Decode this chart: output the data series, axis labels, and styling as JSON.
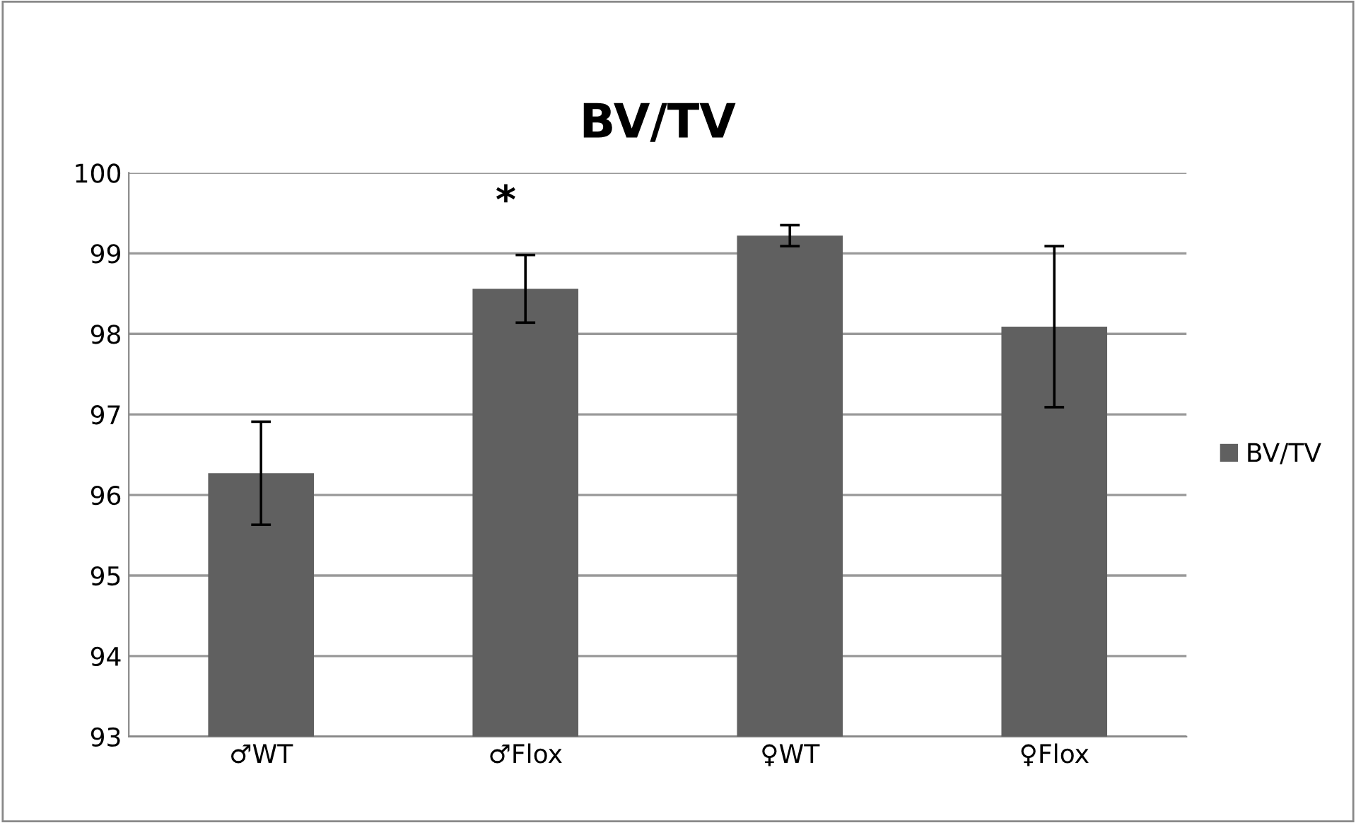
{
  "chart_data": {
    "type": "bar",
    "title": "BV/TV",
    "categories": [
      "♂WT",
      "♂Flox",
      "♀WT",
      "♀Flox"
    ],
    "series": [
      {
        "name": "BV/TV",
        "color": "#606060",
        "values": [
          96.27,
          98.56,
          99.22,
          98.09
        ],
        "errors": [
          0.64,
          0.42,
          0.13,
          1.0
        ]
      }
    ],
    "ylim": [
      93,
      100
    ],
    "yticks": [
      93,
      94,
      95,
      96,
      97,
      98,
      99,
      100
    ],
    "grid": "y",
    "legend": "right",
    "annotations": [
      "*"
    ]
  }
}
